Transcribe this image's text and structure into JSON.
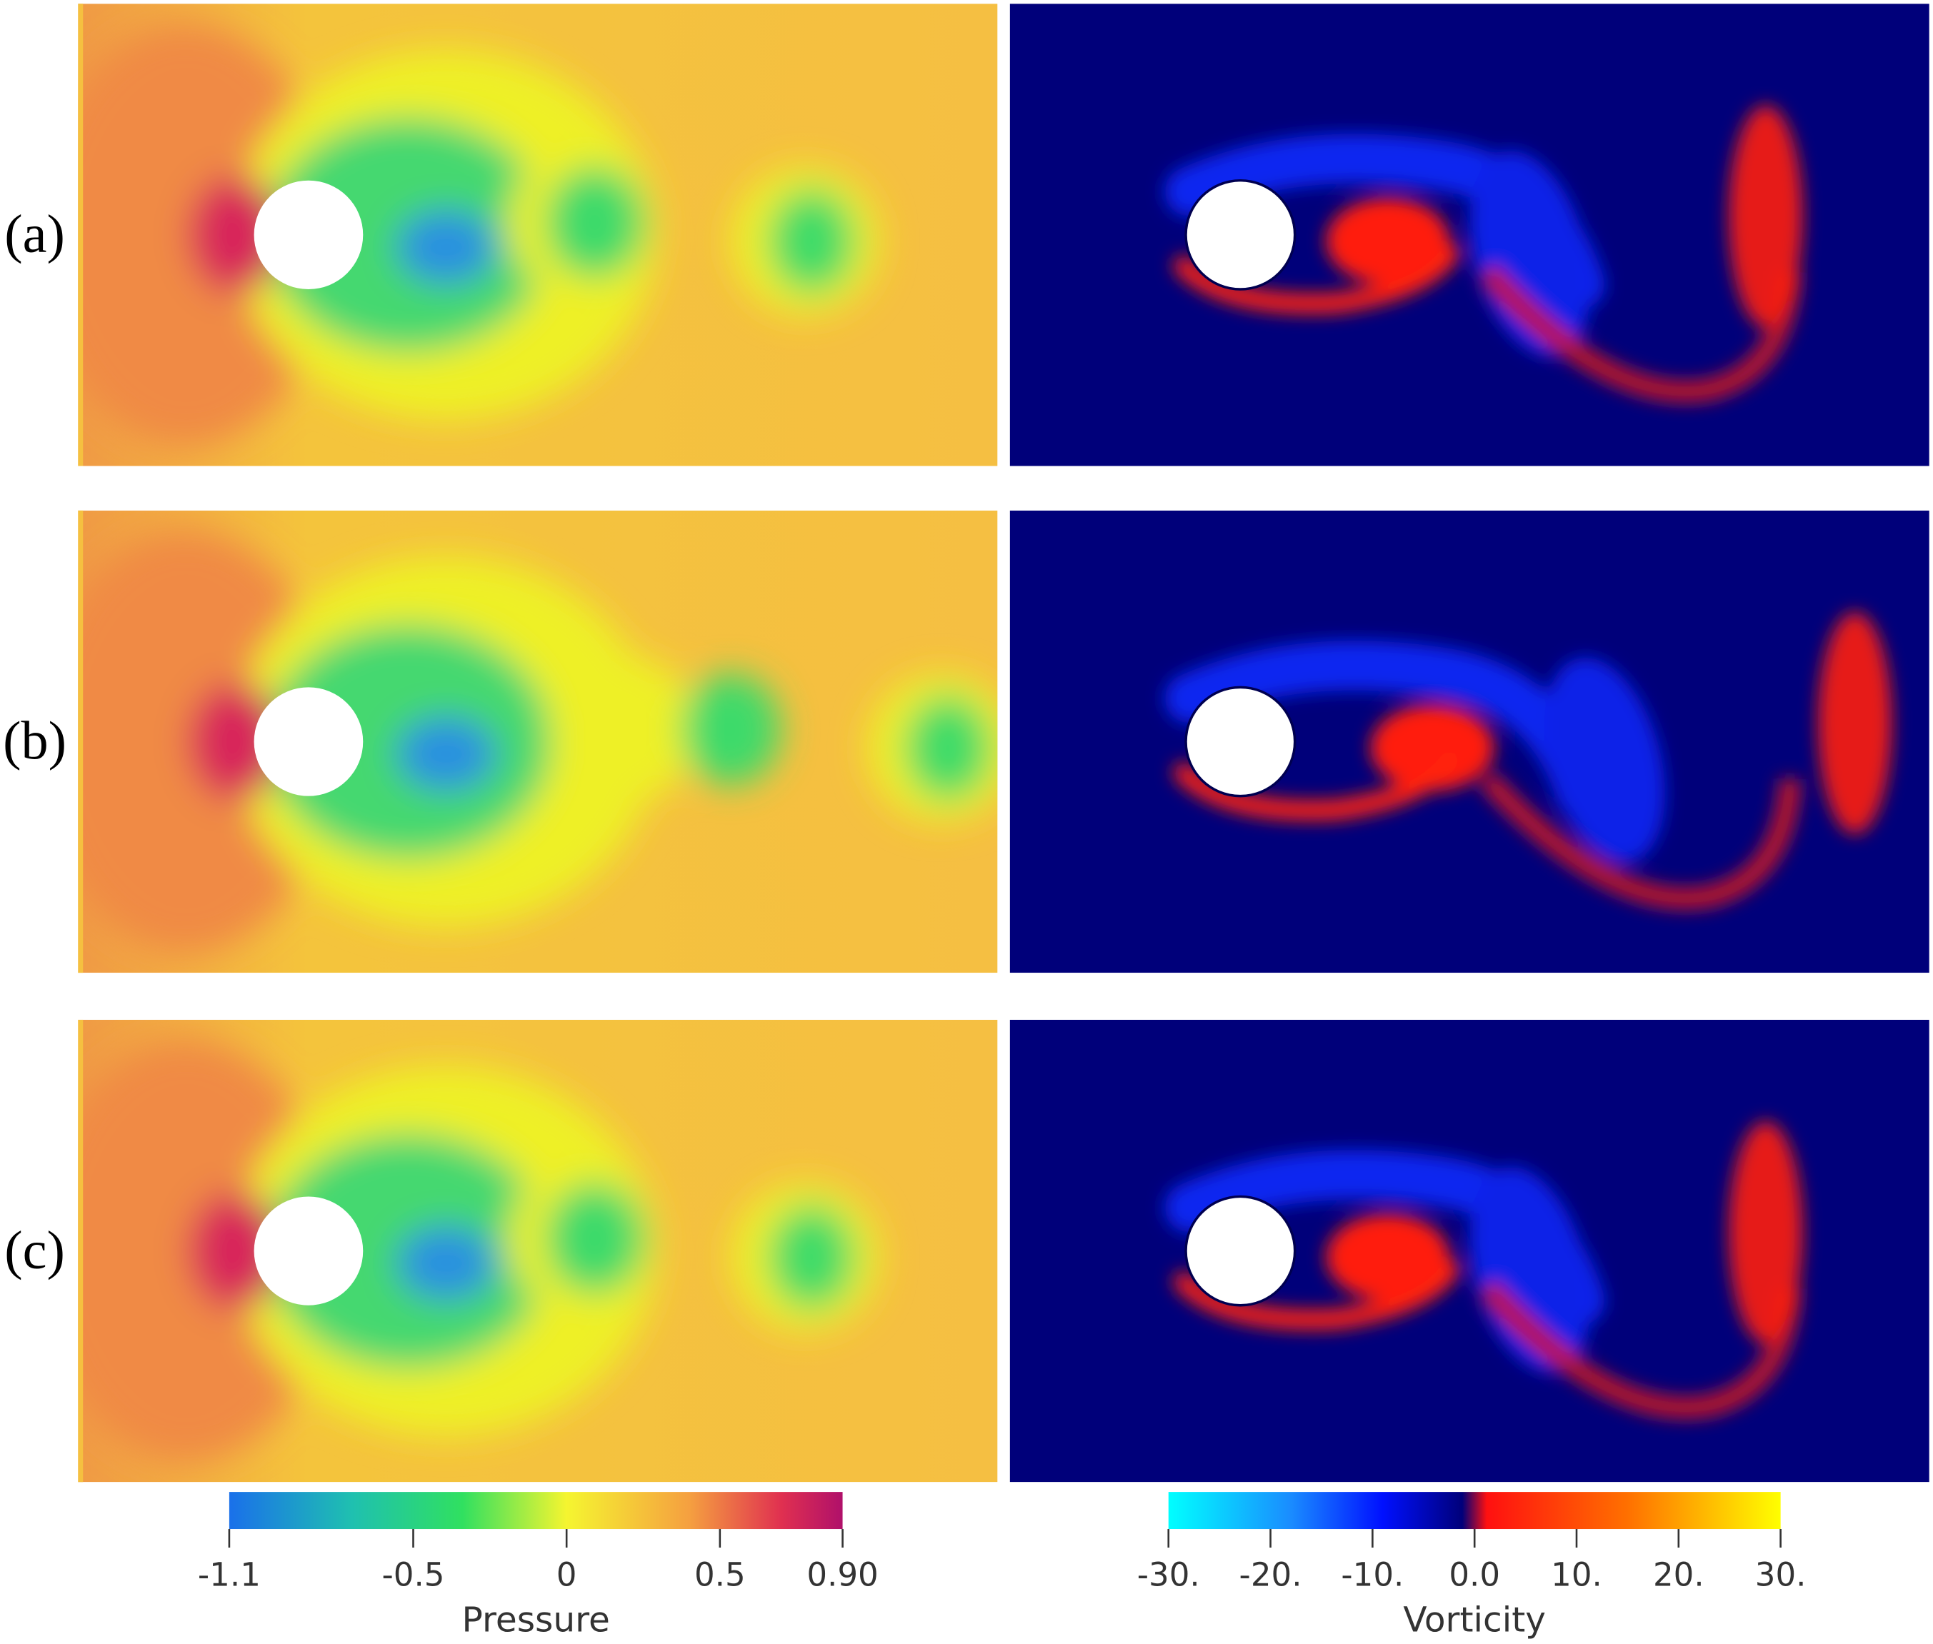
{
  "panels": [
    {
      "label": "(a)"
    },
    {
      "label": "(b)"
    },
    {
      "label": "(c)"
    }
  ],
  "colorbars": [
    {
      "title": "Pressure",
      "range": [
        -1.1,
        0.9
      ],
      "ticks": [
        -1.1,
        -0.5,
        0,
        0.5,
        {
          "value": 0.9,
          "label": "0.90"
        }
      ]
    },
    {
      "title": "Vorticity",
      "range": [
        -30,
        30
      ],
      "ticks": [
        {
          "value": -30,
          "label": "-30."
        },
        {
          "value": -20,
          "label": "-20."
        },
        {
          "value": -10,
          "label": "-10."
        },
        {
          "value": 0,
          "label": "0.0"
        },
        {
          "value": 10,
          "label": "10."
        },
        {
          "value": 20,
          "label": "20."
        },
        {
          "value": 30,
          "label": "30."
        }
      ]
    }
  ]
}
